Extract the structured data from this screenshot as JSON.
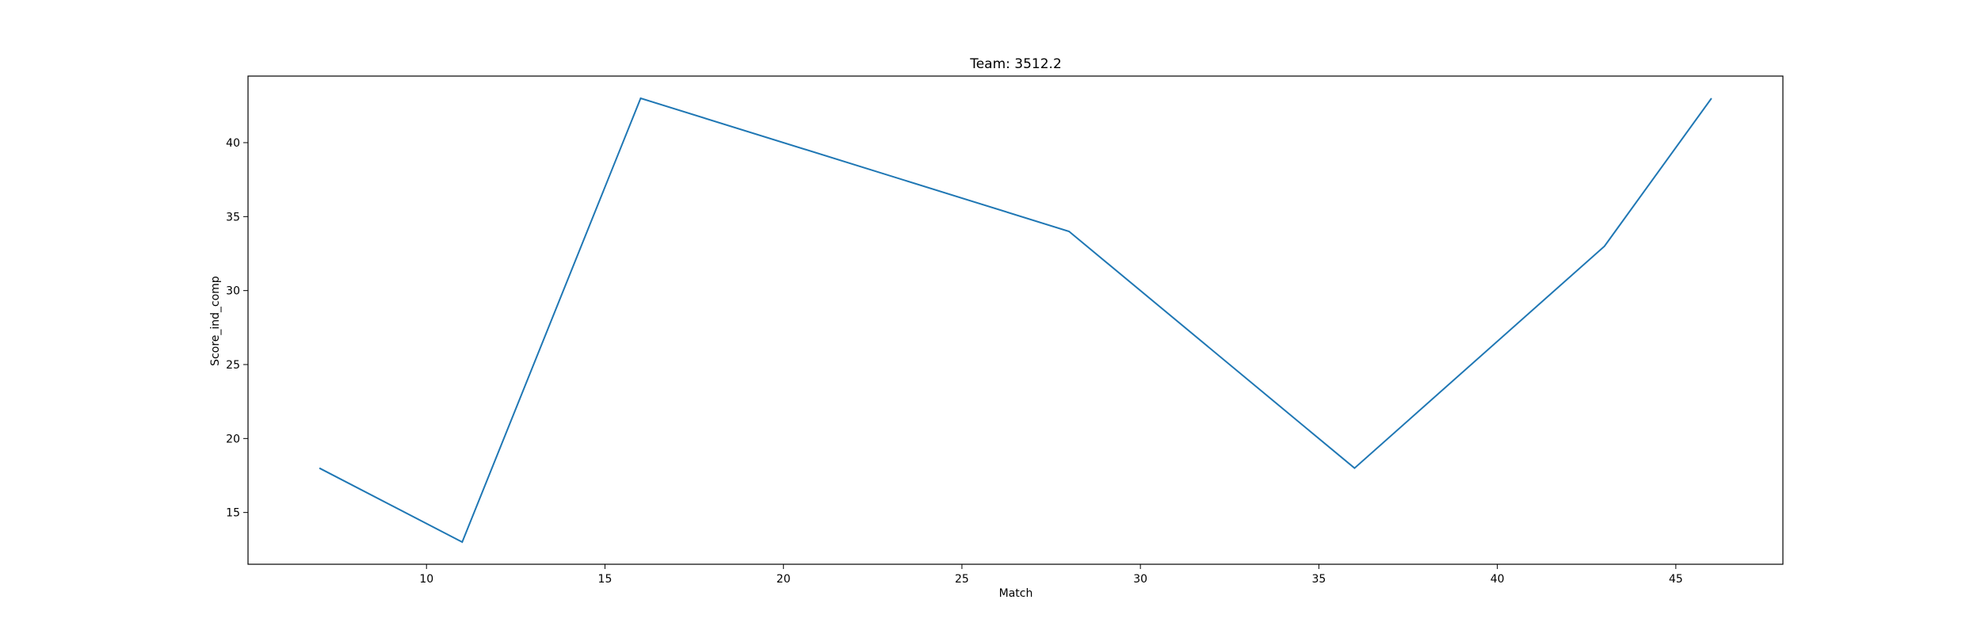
{
  "chart_data": {
    "type": "line",
    "title": "Team: 3512.2",
    "xlabel": "Match",
    "ylabel": "Score_ind_comp",
    "xlim": [
      5,
      48
    ],
    "ylim": [
      11.5,
      44.5
    ],
    "xticks": [
      10,
      15,
      20,
      25,
      30,
      35,
      40,
      45
    ],
    "yticks": [
      15,
      20,
      25,
      30,
      35,
      40
    ],
    "grid": false,
    "colors": {
      "line": "#1f77b4",
      "axes": "#000000",
      "background": "#ffffff"
    },
    "series": [
      {
        "x": [
          7,
          11,
          16,
          28,
          36,
          43,
          46
        ],
        "y": [
          18,
          13,
          43,
          34,
          18,
          33,
          43
        ]
      }
    ]
  }
}
